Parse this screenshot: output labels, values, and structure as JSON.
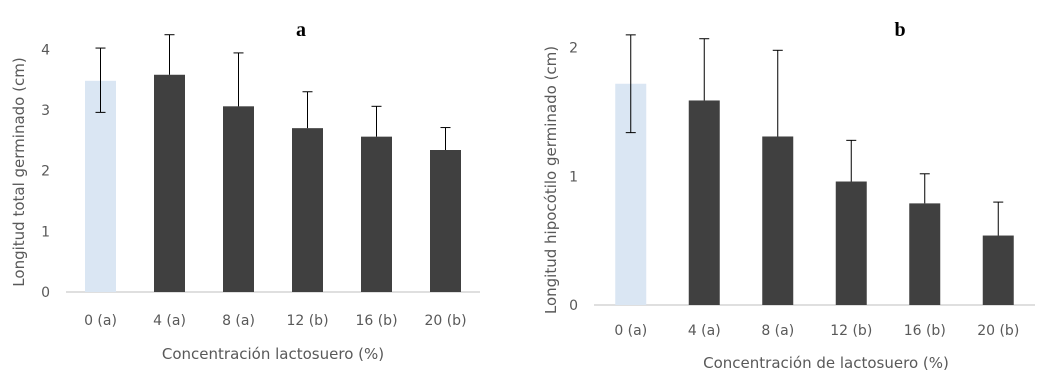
{
  "chart_data": [
    {
      "type": "bar",
      "panel_label": "a",
      "xlabel": "Concentración lactosuero (%)",
      "ylabel": "Longitud total germinado (cm)",
      "categories": [
        "0 (a)",
        "4 (a)",
        "8 (a)",
        "12 (b)",
        "16 (b)",
        "20 (b)"
      ],
      "values": [
        3.48,
        3.58,
        3.06,
        2.7,
        2.56,
        2.34
      ],
      "error_upper": [
        0.54,
        0.66,
        0.88,
        0.6,
        0.5,
        0.37
      ],
      "error_lower": [
        0.52,
        0,
        0,
        0,
        0,
        0
      ],
      "ylim": [
        0,
        4.4
      ],
      "yticks": [
        0,
        1,
        2,
        3,
        4
      ],
      "bar_colors": [
        "#dae6f3",
        "#404040",
        "#404040",
        "#404040",
        "#404040",
        "#404040"
      ],
      "grid": false,
      "legend": "none"
    },
    {
      "type": "bar",
      "panel_label": "b",
      "xlabel": "Concentración de lactosuero (%)",
      "ylabel": "Longitud hipocótilo germinado (cm)",
      "categories": [
        "0 (a)",
        "4 (a)",
        "8 (a)",
        "12 (b)",
        "16 (b)",
        "20 (b)"
      ],
      "values": [
        1.72,
        1.59,
        1.31,
        0.96,
        0.79,
        0.54
      ],
      "error_upper": [
        0.38,
        0.48,
        0.67,
        0.32,
        0.23,
        0.26
      ],
      "error_lower": [
        0.38,
        0,
        0,
        0,
        0,
        0
      ],
      "ylim": [
        0,
        2.2
      ],
      "yticks": [
        0,
        1,
        2
      ],
      "bar_colors": [
        "#dae6f3",
        "#404040",
        "#404040",
        "#404040",
        "#404040",
        "#404040"
      ],
      "grid": false,
      "legend": "none"
    }
  ]
}
